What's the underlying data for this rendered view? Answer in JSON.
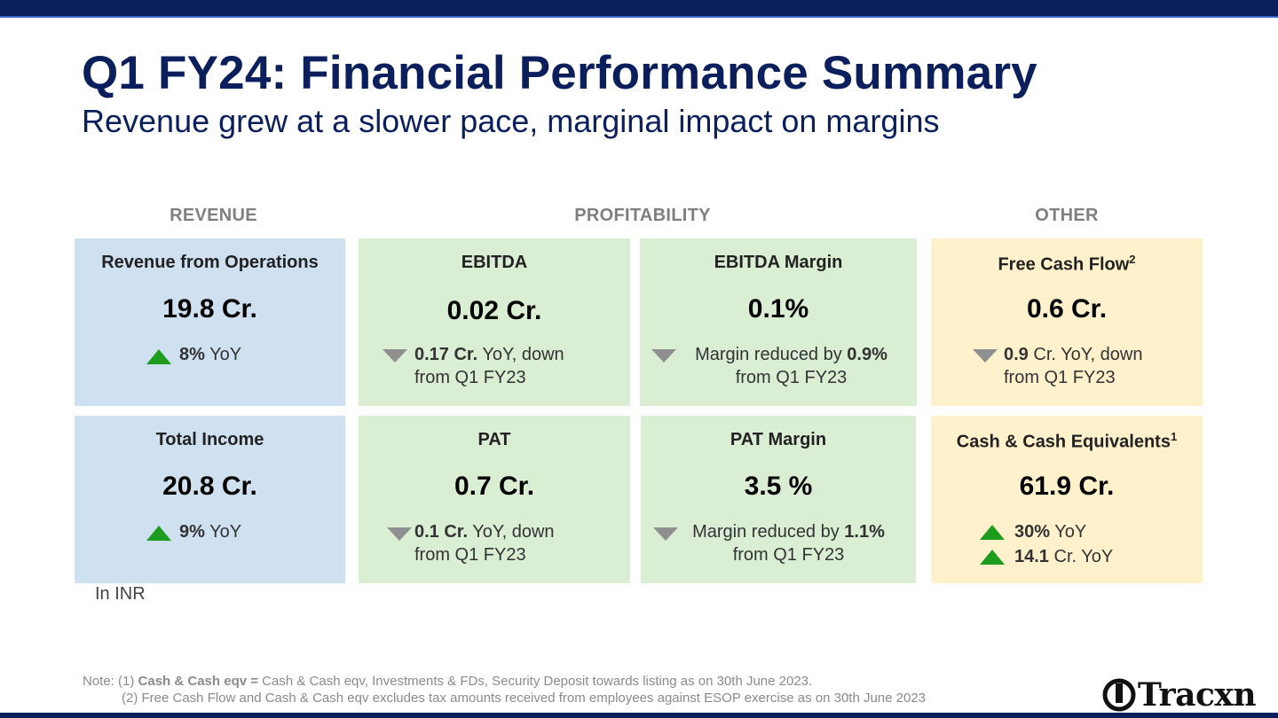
{
  "slide": {
    "title": "Q1 FY24: Financial Performance Summary",
    "subtitle": "Revenue grew at a slower pace, marginal impact on margins"
  },
  "sections": {
    "revenue": "REVENUE",
    "profitability": "PROFITABILITY",
    "other": "OTHER"
  },
  "cards": {
    "revenue_ops": {
      "label": "Revenue from Operations",
      "value": "19.8 Cr.",
      "delta_direction": "up",
      "delta_strong": "8%",
      "delta_text": " YoY"
    },
    "total_income": {
      "label": "Total Income",
      "value": "20.8 Cr.",
      "delta_direction": "up",
      "delta_strong": "9%",
      "delta_text": " YoY"
    },
    "ebitda": {
      "label": "EBITDA",
      "value": "0.02 Cr.",
      "delta_direction": "down",
      "delta_strong": "0.17 Cr.",
      "delta_text": " YoY, down",
      "delta_line2": "from Q1 FY23"
    },
    "ebitda_margin": {
      "label": "EBITDA Margin",
      "value": "0.1%",
      "delta_direction": "down",
      "delta_prefix": "Margin reduced by ",
      "delta_strong": "0.9%",
      "delta_line2": "from Q1 FY23"
    },
    "pat": {
      "label": "PAT",
      "value": "0.7 Cr.",
      "delta_direction": "down",
      "delta_strong": "0.1 Cr.",
      "delta_text": " YoY, down",
      "delta_line2": "from Q1 FY23"
    },
    "pat_margin": {
      "label": "PAT Margin",
      "value": "3.5 %",
      "delta_direction": "down",
      "delta_prefix": "Margin reduced by ",
      "delta_strong": "1.1%",
      "delta_line2": "from Q1 FY23"
    },
    "fcf": {
      "label": "Free Cash Flow",
      "footnote": "2",
      "value": "0.6 Cr.",
      "delta_direction": "down",
      "delta_strong": "0.9",
      "delta_text": " Cr. YoY, down",
      "delta_line2": "from Q1 FY23"
    },
    "cash": {
      "label": "Cash & Cash Equivalents",
      "footnote": "1",
      "value": "61.9 Cr.",
      "delta_direction": "up",
      "delta_strong": "30%",
      "delta_text": " YoY",
      "delta2_strong": "14.1",
      "delta2_text": " Cr. YoY"
    }
  },
  "unit_note": "In INR",
  "notes": {
    "prefix": "Note: (1) ",
    "strong": "Cash & Cash eqv =",
    "text1": " Cash & Cash eqv, Investments & FDs, Security Deposit towards listing as on 30th June 2023.",
    "line2": "(2) Free Cash Flow and Cash & Cash eqv excludes tax amounts received from employees against ESOP exercise as on 30th June 2023"
  },
  "logo": {
    "text": "Tracxn"
  },
  "colors": {
    "navy": "#0b1f5c",
    "blue_card": "#cfe0f1",
    "green_card": "#d9eed3",
    "yellow_card": "#fff1cb",
    "up": "#1e9c1e",
    "down": "#8f8f8f"
  }
}
